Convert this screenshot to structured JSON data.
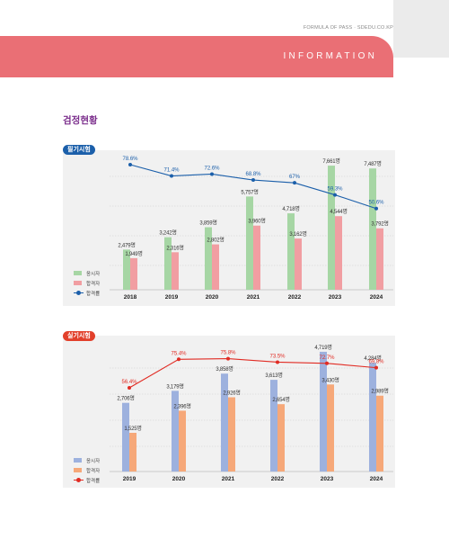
{
  "header": {
    "meta": "FORMULA OF PASS · SDEDU.CO.KP",
    "band_label": "INFORMATION"
  },
  "section_title": "검정현황",
  "colors": {
    "band": "#ea6f75",
    "section_title": "#7b2e8c",
    "written_tag": "#1b5faa",
    "practical_tag": "#e2402b",
    "written_applicants": "#a6d6a4",
    "written_passers": "#f19ea2",
    "written_rate": "#1b5faa",
    "practical_applicants": "#9db1de",
    "practical_passers": "#f6a879",
    "practical_rate": "#e12b23"
  },
  "chart_data": [
    {
      "type": "bar",
      "title": "필기시험",
      "categories": [
        "2018",
        "2019",
        "2020",
        "2021",
        "2022",
        "2023",
        "2024"
      ],
      "series": [
        {
          "name": "응시자",
          "values": [
            2479,
            3242,
            3859,
            5757,
            4718,
            7661,
            7487
          ],
          "labels": [
            "2,479명",
            "3,242명",
            "3,859명",
            "5,757명",
            "4,718명",
            "7,661명",
            "7,487명"
          ]
        },
        {
          "name": "합격자",
          "values": [
            1949,
            2316,
            2802,
            3960,
            3162,
            4544,
            3792
          ],
          "labels": [
            "1,949명",
            "2,316명",
            "2,802명",
            "3,960명",
            "3,162명",
            "4,544명",
            "3,792명"
          ]
        },
        {
          "name": "합격률",
          "type": "line",
          "values": [
            78.6,
            71.4,
            72.6,
            68.8,
            67,
            59.3,
            50.6
          ],
          "labels": [
            "78.6%",
            "71.4%",
            "72.6%",
            "68.8%",
            "67%",
            "59.3%",
            "50.6%"
          ]
        }
      ],
      "legend_position": "bottom-left",
      "grid": true
    },
    {
      "type": "bar",
      "title": "실기시험",
      "categories": [
        "2019",
        "2020",
        "2021",
        "2022",
        "2023",
        "2024"
      ],
      "series": [
        {
          "name": "응시자",
          "values": [
            2706,
            3179,
            3858,
            3613,
            4719,
            4284
          ],
          "labels": [
            "2,706명",
            "3,179명",
            "3,858명",
            "3,613명",
            "4,719명",
            "4,284명"
          ]
        },
        {
          "name": "합격자",
          "values": [
            1525,
            2396,
            2926,
            2654,
            3430,
            2989
          ],
          "labels": [
            "1,525명",
            "2,396명",
            "2,926명",
            "2,654명",
            "3,430명",
            "2,989명"
          ]
        },
        {
          "name": "합격률",
          "type": "line",
          "values": [
            56.4,
            75.4,
            75.8,
            73.5,
            72.7,
            69.8
          ],
          "labels": [
            "56.4%",
            "75.4%",
            "75.8%",
            "73.5%",
            "72.7%",
            "69.8%"
          ]
        }
      ],
      "legend_position": "bottom-left",
      "grid": true
    }
  ]
}
